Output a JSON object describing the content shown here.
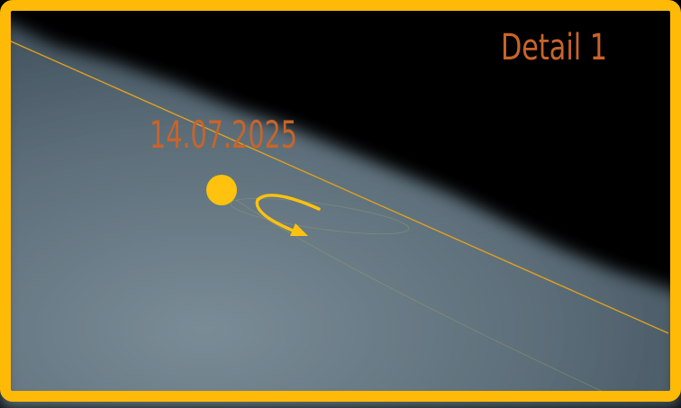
{
  "label": "Detail 1",
  "date": "14.07.2025"
}
